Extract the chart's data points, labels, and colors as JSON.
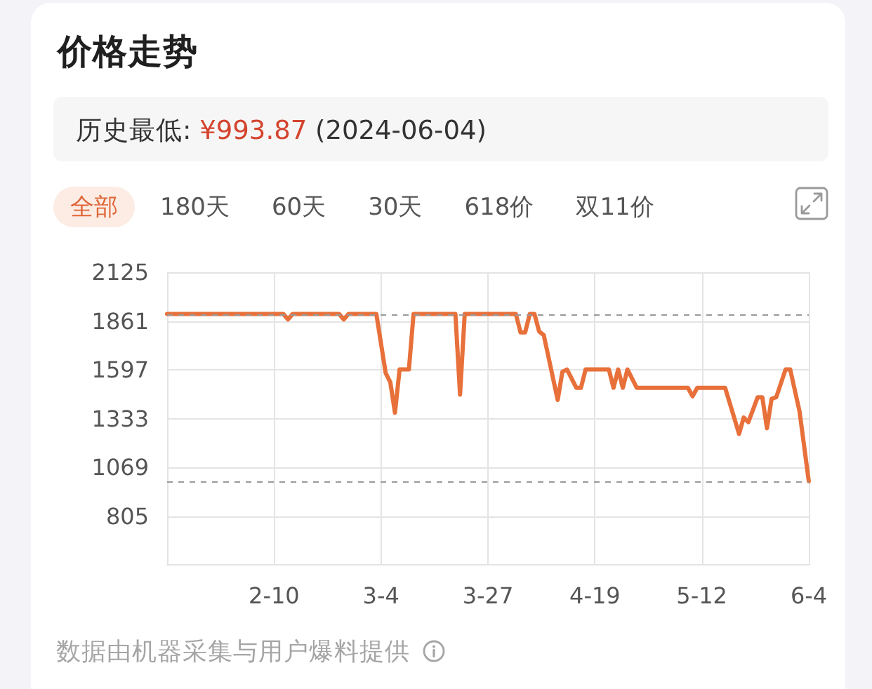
{
  "chart_data": {
    "type": "line",
    "title": "价格走势",
    "subtitle": "历史最低: ¥993.87 (2024-06-04)",
    "annotations": [
      "全部",
      "180天",
      "60天",
      "30天",
      "618价",
      "双11价",
      "数据由机器采集与用户爆料提供"
    ],
    "x": [
      "2024-01-18",
      "2024-02-12",
      "2024-02-13",
      "2024-02-14",
      "2024-02-24",
      "2024-02-25",
      "2024-02-26",
      "2024-03-03",
      "2024-03-05",
      "2024-03-06",
      "2024-03-07",
      "2024-03-08",
      "2024-03-10",
      "2024-03-11",
      "2024-03-20",
      "2024-03-21",
      "2024-03-22",
      "2024-04-02",
      "2024-04-03",
      "2024-04-04",
      "2024-04-05",
      "2024-04-06",
      "2024-04-07",
      "2024-04-08",
      "2024-04-11",
      "2024-04-12",
      "2024-04-13",
      "2024-04-15",
      "2024-04-16",
      "2024-04-17",
      "2024-04-22",
      "2024-04-23",
      "2024-04-24",
      "2024-04-25",
      "2024-04-26",
      "2024-04-28",
      "2024-05-09",
      "2024-05-10",
      "2024-05-11",
      "2024-05-17",
      "2024-05-20",
      "2024-05-21",
      "2024-05-22",
      "2024-05-24",
      "2024-05-25",
      "2024-05-26",
      "2024-05-27",
      "2024-05-28",
      "2024-05-30",
      "2024-05-31",
      "2024-06-02",
      "2024-06-04"
    ],
    "values": [
      1899,
      1899,
      1870,
      1899,
      1899,
      1870,
      1899,
      1899,
      1580,
      1530,
      1365,
      1599,
      1599,
      1899,
      1899,
      1463,
      1899,
      1899,
      1800,
      1800,
      1899,
      1899,
      1805,
      1785,
      1434,
      1586,
      1599,
      1500,
      1500,
      1599,
      1599,
      1500,
      1599,
      1500,
      1599,
      1500,
      1500,
      1454,
      1500,
      1500,
      1251,
      1339,
      1314,
      1449,
      1449,
      1281,
      1441,
      1449,
      1599,
      1599,
      1373,
      993.87
    ],
    "color": "#e8703a",
    "xlim": [
      "2024-01-18",
      "2024-06-04"
    ],
    "xticks": [
      {
        "value": "2024-02-10",
        "label": "2-10"
      },
      {
        "value": "2024-03-04",
        "label": "3-4"
      },
      {
        "value": "2024-03-27",
        "label": "3-27"
      },
      {
        "value": "2024-04-19",
        "label": "4-19"
      },
      {
        "value": "2024-05-12",
        "label": "5-12"
      },
      {
        "value": "2024-06-04",
        "label": "6-4"
      }
    ],
    "ylim": [
      541,
      2125
    ],
    "yticks": [
      805,
      1069,
      1333,
      1597,
      1861,
      2125
    ],
    "grid": true,
    "ref_lines": [
      {
        "axis": "y",
        "value": 1899,
        "color": "#9a9a9a",
        "line_style": "dashed"
      },
      {
        "axis": "y",
        "value": 993.87,
        "color": "#9a9a9a",
        "line_style": "dashed"
      }
    ]
  }
}
